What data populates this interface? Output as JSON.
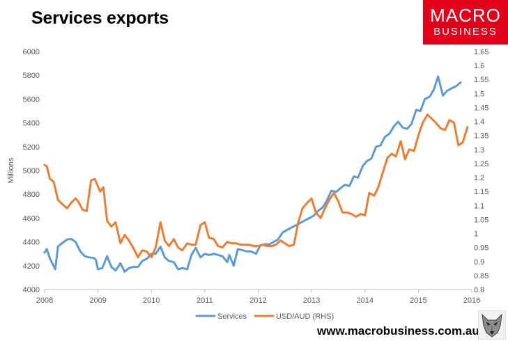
{
  "header": {
    "title": "Services exports",
    "logo_line1": "MACRO",
    "logo_line2": "BUSINESS",
    "website": "www.macrobusiness.com.au"
  },
  "colors": {
    "services": "#5b9bd5",
    "usd_aud": "#ed7d31",
    "logo_bg": "#e3001b"
  },
  "chart_data": {
    "type": "line",
    "title": "Services exports",
    "ylabel": "Millions",
    "y2label": "",
    "xlim": [
      2008,
      2016
    ],
    "ylim": [
      4000,
      6000
    ],
    "y2lim": [
      0.8,
      1.65
    ],
    "x_ticks": [
      "2008",
      "2009",
      "2010",
      "2011",
      "2012",
      "2013",
      "2014",
      "2015",
      "2016"
    ],
    "y_ticks": [
      "4000",
      "4200",
      "4400",
      "4600",
      "4800",
      "5000",
      "5200",
      "5400",
      "5600",
      "5800",
      "6000"
    ],
    "y2_ticks": [
      "0.8",
      "0.85",
      "0.9",
      "0.95",
      "1",
      "1.05",
      "1.1",
      "1.15",
      "1.2",
      "1.25",
      "1.3",
      "1.35",
      "1.4",
      "1.45",
      "1.5",
      "1.55",
      "1.6",
      "1.65"
    ],
    "legend": [
      "Services",
      "USD/AUD (RHS)"
    ],
    "legend_position": "bottom",
    "series": [
      {
        "name": "Services",
        "axis": "left",
        "points": [
          [
            2008.0,
            4310
          ],
          [
            2008.04,
            4340
          ],
          [
            2008.1,
            4260
          ],
          [
            2008.2,
            4170
          ],
          [
            2008.25,
            4360
          ],
          [
            2008.33,
            4390
          ],
          [
            2008.42,
            4420
          ],
          [
            2008.5,
            4425
          ],
          [
            2008.58,
            4400
          ],
          [
            2008.67,
            4320
          ],
          [
            2008.75,
            4280
          ],
          [
            2008.83,
            4270
          ],
          [
            2008.92,
            4265
          ],
          [
            2008.96,
            4250
          ],
          [
            2009.0,
            4170
          ],
          [
            2009.08,
            4180
          ],
          [
            2009.17,
            4280
          ],
          [
            2009.25,
            4190
          ],
          [
            2009.33,
            4160
          ],
          [
            2009.42,
            4220
          ],
          [
            2009.5,
            4150
          ],
          [
            2009.58,
            4180
          ],
          [
            2009.67,
            4190
          ],
          [
            2009.75,
            4190
          ],
          [
            2009.83,
            4240
          ],
          [
            2009.92,
            4260
          ],
          [
            2010.0,
            4300
          ],
          [
            2010.08,
            4300
          ],
          [
            2010.17,
            4360
          ],
          [
            2010.25,
            4270
          ],
          [
            2010.33,
            4240
          ],
          [
            2010.42,
            4230
          ],
          [
            2010.5,
            4170
          ],
          [
            2010.58,
            4180
          ],
          [
            2010.67,
            4170
          ],
          [
            2010.75,
            4290
          ],
          [
            2010.83,
            4350
          ],
          [
            2010.92,
            4270
          ],
          [
            2011.0,
            4300
          ],
          [
            2011.08,
            4290
          ],
          [
            2011.17,
            4300
          ],
          [
            2011.25,
            4290
          ],
          [
            2011.33,
            4280
          ],
          [
            2011.42,
            4230
          ],
          [
            2011.46,
            4290
          ],
          [
            2011.54,
            4200
          ],
          [
            2011.62,
            4340
          ],
          [
            2011.71,
            4330
          ],
          [
            2011.79,
            4320
          ],
          [
            2011.87,
            4320
          ],
          [
            2011.96,
            4300
          ],
          [
            2012.04,
            4370
          ],
          [
            2012.12,
            4380
          ],
          [
            2012.21,
            4380
          ],
          [
            2012.29,
            4400
          ],
          [
            2012.37,
            4420
          ],
          [
            2012.46,
            4480
          ],
          [
            2012.54,
            4500
          ],
          [
            2012.62,
            4520
          ],
          [
            2012.71,
            4540
          ],
          [
            2012.79,
            4560
          ],
          [
            2012.87,
            4580
          ],
          [
            2012.96,
            4600
          ],
          [
            2013.04,
            4620
          ],
          [
            2013.12,
            4660
          ],
          [
            2013.21,
            4690
          ],
          [
            2013.29,
            4750
          ],
          [
            2013.37,
            4830
          ],
          [
            2013.46,
            4820
          ],
          [
            2013.54,
            4850
          ],
          [
            2013.62,
            4880
          ],
          [
            2013.71,
            4870
          ],
          [
            2013.79,
            4950
          ],
          [
            2013.87,
            4940
          ],
          [
            2013.96,
            5040
          ],
          [
            2014.04,
            5080
          ],
          [
            2014.12,
            5100
          ],
          [
            2014.21,
            5200
          ],
          [
            2014.29,
            5210
          ],
          [
            2014.37,
            5280
          ],
          [
            2014.46,
            5310
          ],
          [
            2014.54,
            5370
          ],
          [
            2014.62,
            5410
          ],
          [
            2014.71,
            5360
          ],
          [
            2014.79,
            5350
          ],
          [
            2014.87,
            5390
          ],
          [
            2014.96,
            5510
          ],
          [
            2015.04,
            5500
          ],
          [
            2015.12,
            5600
          ],
          [
            2015.21,
            5620
          ],
          [
            2015.29,
            5680
          ],
          [
            2015.37,
            5790
          ],
          [
            2015.46,
            5630
          ],
          [
            2015.54,
            5670
          ],
          [
            2015.62,
            5690
          ],
          [
            2015.71,
            5710
          ],
          [
            2015.79,
            5740
          ]
        ]
      },
      {
        "name": "USD/AUD (RHS)",
        "axis": "right",
        "points": [
          [
            2008.0,
            1.245
          ],
          [
            2008.04,
            1.24
          ],
          [
            2008.1,
            1.195
          ],
          [
            2008.17,
            1.185
          ],
          [
            2008.25,
            1.12
          ],
          [
            2008.33,
            1.105
          ],
          [
            2008.42,
            1.09
          ],
          [
            2008.5,
            1.11
          ],
          [
            2008.58,
            1.125
          ],
          [
            2008.63,
            1.115
          ],
          [
            2008.71,
            1.085
          ],
          [
            2008.79,
            1.08
          ],
          [
            2008.87,
            1.19
          ],
          [
            2008.94,
            1.195
          ],
          [
            2009.04,
            1.15
          ],
          [
            2009.1,
            1.165
          ],
          [
            2009.17,
            1.045
          ],
          [
            2009.25,
            1.025
          ],
          [
            2009.33,
            1.04
          ],
          [
            2009.42,
            0.965
          ],
          [
            2009.5,
            0.995
          ],
          [
            2009.58,
            0.975
          ],
          [
            2009.67,
            0.945
          ],
          [
            2009.75,
            0.915
          ],
          [
            2009.83,
            0.94
          ],
          [
            2009.92,
            0.935
          ],
          [
            2010.0,
            0.915
          ],
          [
            2010.08,
            0.95
          ],
          [
            2010.17,
            1.04
          ],
          [
            2010.25,
            0.975
          ],
          [
            2010.33,
            0.955
          ],
          [
            2010.42,
            0.98
          ],
          [
            2010.5,
            0.95
          ],
          [
            2010.58,
            0.94
          ],
          [
            2010.67,
            0.965
          ],
          [
            2010.75,
            0.96
          ],
          [
            2010.83,
            0.96
          ],
          [
            2010.92,
            1.03
          ],
          [
            2011.0,
            1.04
          ],
          [
            2011.08,
            0.985
          ],
          [
            2011.17,
            0.98
          ],
          [
            2011.25,
            0.955
          ],
          [
            2011.33,
            0.95
          ],
          [
            2011.42,
            0.97
          ],
          [
            2011.5,
            0.965
          ],
          [
            2011.58,
            0.965
          ],
          [
            2011.67,
            0.96
          ],
          [
            2011.75,
            0.96
          ],
          [
            2011.83,
            0.96
          ],
          [
            2011.92,
            0.955
          ],
          [
            2012.0,
            0.955
          ],
          [
            2012.08,
            0.96
          ],
          [
            2012.17,
            0.955
          ],
          [
            2012.25,
            0.955
          ],
          [
            2012.33,
            0.96
          ],
          [
            2012.42,
            0.975
          ],
          [
            2012.5,
            0.965
          ],
          [
            2012.58,
            0.955
          ],
          [
            2012.67,
            0.96
          ],
          [
            2012.75,
            1.04
          ],
          [
            2012.83,
            1.09
          ],
          [
            2012.92,
            1.11
          ],
          [
            2013.0,
            1.125
          ],
          [
            2013.08,
            1.075
          ],
          [
            2013.17,
            1.055
          ],
          [
            2013.25,
            1.09
          ],
          [
            2013.33,
            1.12
          ],
          [
            2013.42,
            1.145
          ],
          [
            2013.5,
            1.115
          ],
          [
            2013.58,
            1.075
          ],
          [
            2013.67,
            1.075
          ],
          [
            2013.75,
            1.07
          ],
          [
            2013.83,
            1.06
          ],
          [
            2013.92,
            1.07
          ],
          [
            2014.0,
            1.065
          ],
          [
            2014.08,
            1.145
          ],
          [
            2014.17,
            1.135
          ],
          [
            2014.25,
            1.165
          ],
          [
            2014.33,
            1.215
          ],
          [
            2014.42,
            1.27
          ],
          [
            2014.5,
            1.285
          ],
          [
            2014.58,
            1.275
          ],
          [
            2014.67,
            1.33
          ],
          [
            2014.75,
            1.265
          ],
          [
            2014.83,
            1.3
          ],
          [
            2014.92,
            1.295
          ],
          [
            2015.0,
            1.35
          ],
          [
            2015.08,
            1.395
          ],
          [
            2015.17,
            1.425
          ],
          [
            2015.25,
            1.41
          ],
          [
            2015.33,
            1.395
          ],
          [
            2015.42,
            1.375
          ],
          [
            2015.5,
            1.37
          ],
          [
            2015.58,
            1.405
          ],
          [
            2015.67,
            1.395
          ],
          [
            2015.75,
            1.315
          ],
          [
            2015.83,
            1.325
          ],
          [
            2015.92,
            1.38
          ]
        ]
      }
    ]
  }
}
